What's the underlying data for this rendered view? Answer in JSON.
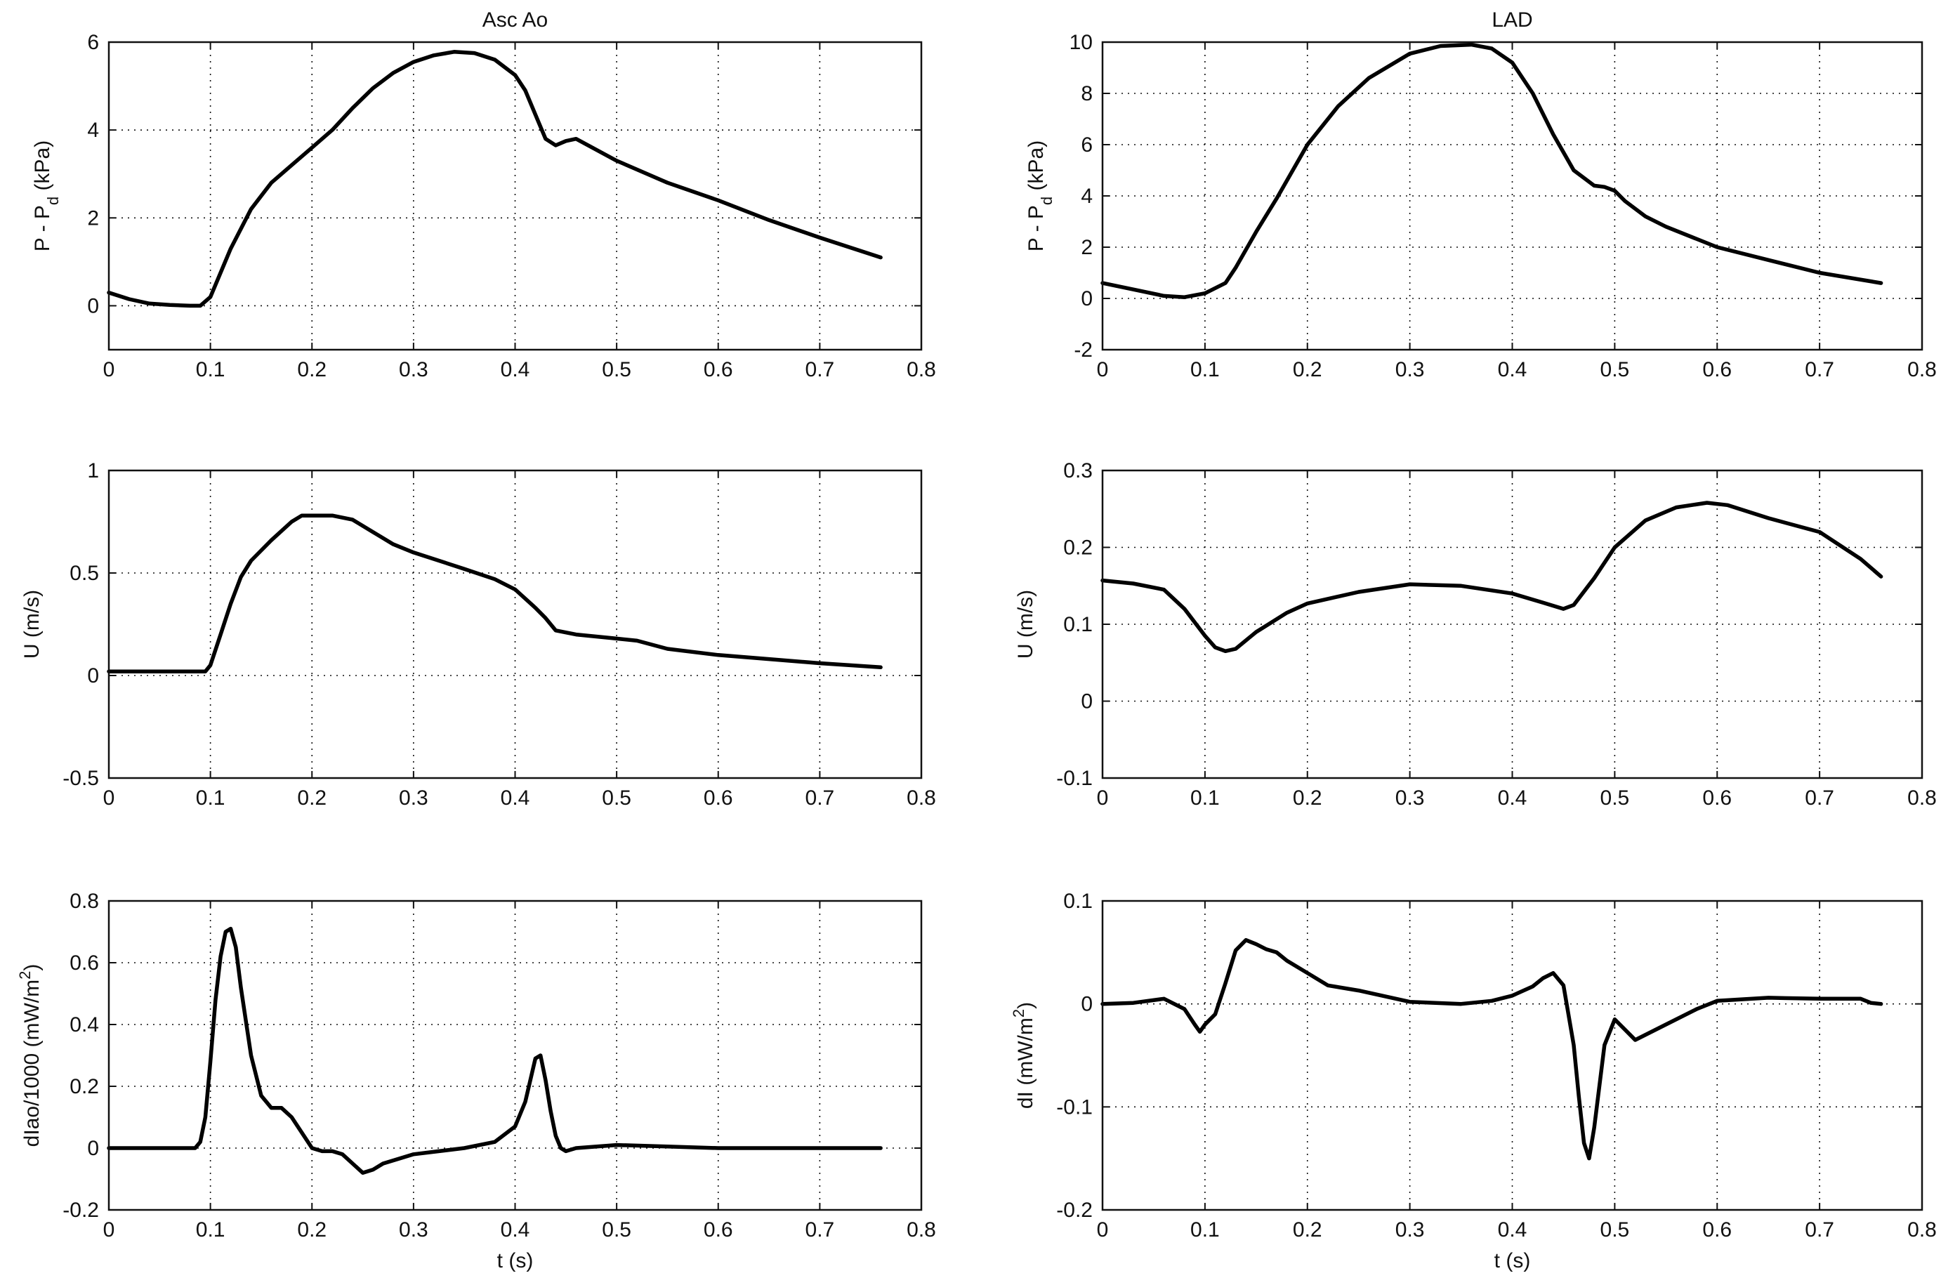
{
  "figure": {
    "col_titles": [
      "Asc Ao",
      "LAD"
    ],
    "xlabel": "t  (s)"
  },
  "chart_data": [
    {
      "id": "ascao-pressure",
      "type": "line",
      "title": "Asc Ao",
      "xlabel": "",
      "ylabel": "P - P_d  (kPa)",
      "xlim": [
        0,
        0.8
      ],
      "ylim": [
        -1,
        6
      ],
      "grid": true,
      "xticks": [
        "0",
        "0.1",
        "0.2",
        "0.3",
        "0.4",
        "0.5",
        "0.6",
        "0.7",
        "0.8"
      ],
      "yticks": [
        "0",
        "2",
        "4",
        "6"
      ],
      "x": [
        0,
        0.02,
        0.04,
        0.06,
        0.08,
        0.09,
        0.1,
        0.12,
        0.14,
        0.16,
        0.18,
        0.2,
        0.22,
        0.24,
        0.26,
        0.28,
        0.3,
        0.32,
        0.34,
        0.36,
        0.38,
        0.4,
        0.41,
        0.42,
        0.43,
        0.44,
        0.45,
        0.46,
        0.48,
        0.5,
        0.55,
        0.6,
        0.65,
        0.7,
        0.76
      ],
      "y": [
        0.3,
        0.15,
        0.05,
        0.02,
        0.0,
        0.0,
        0.2,
        1.3,
        2.2,
        2.8,
        3.2,
        3.6,
        4.0,
        4.5,
        4.95,
        5.3,
        5.55,
        5.7,
        5.78,
        5.75,
        5.6,
        5.25,
        4.9,
        4.35,
        3.8,
        3.65,
        3.75,
        3.8,
        3.55,
        3.3,
        2.8,
        2.4,
        1.95,
        1.55,
        1.1
      ]
    },
    {
      "id": "ascao-velocity",
      "type": "line",
      "xlabel": "",
      "ylabel": "U  (m/s)",
      "xlim": [
        0,
        0.8
      ],
      "ylim": [
        -0.5,
        1
      ],
      "grid": true,
      "xticks": [
        "0",
        "0.1",
        "0.2",
        "0.3",
        "0.4",
        "0.5",
        "0.6",
        "0.7",
        "0.8"
      ],
      "yticks": [
        "-0.5",
        "0",
        "0.5",
        "1"
      ],
      "x": [
        0,
        0.05,
        0.095,
        0.1,
        0.11,
        0.12,
        0.13,
        0.14,
        0.16,
        0.18,
        0.19,
        0.2,
        0.22,
        0.24,
        0.26,
        0.28,
        0.3,
        0.35,
        0.38,
        0.4,
        0.42,
        0.43,
        0.44,
        0.46,
        0.5,
        0.52,
        0.55,
        0.6,
        0.65,
        0.7,
        0.76
      ],
      "y": [
        0.02,
        0.02,
        0.02,
        0.05,
        0.2,
        0.35,
        0.48,
        0.56,
        0.66,
        0.75,
        0.78,
        0.78,
        0.78,
        0.76,
        0.7,
        0.64,
        0.6,
        0.52,
        0.47,
        0.42,
        0.33,
        0.28,
        0.22,
        0.2,
        0.18,
        0.17,
        0.13,
        0.1,
        0.08,
        0.06,
        0.04
      ]
    },
    {
      "id": "ascao-intensity",
      "type": "line",
      "xlabel": "t  (s)",
      "ylabel": "dIao/1000  (mW/m^2)",
      "xlim": [
        0,
        0.8
      ],
      "ylim": [
        -0.2,
        0.8
      ],
      "grid": true,
      "xticks": [
        "0",
        "0.1",
        "0.2",
        "0.3",
        "0.4",
        "0.5",
        "0.6",
        "0.7",
        "0.8"
      ],
      "yticks": [
        "-0.2",
        "0",
        "0.2",
        "0.4",
        "0.6",
        "0.8"
      ],
      "x": [
        0,
        0.05,
        0.085,
        0.09,
        0.095,
        0.1,
        0.105,
        0.11,
        0.115,
        0.12,
        0.125,
        0.13,
        0.14,
        0.15,
        0.16,
        0.17,
        0.18,
        0.19,
        0.2,
        0.21,
        0.22,
        0.23,
        0.24,
        0.25,
        0.26,
        0.27,
        0.3,
        0.35,
        0.38,
        0.4,
        0.41,
        0.415,
        0.42,
        0.425,
        0.43,
        0.435,
        0.44,
        0.445,
        0.45,
        0.46,
        0.5,
        0.55,
        0.6,
        0.65,
        0.7,
        0.76
      ],
      "y": [
        0,
        0,
        0,
        0.02,
        0.1,
        0.28,
        0.48,
        0.62,
        0.7,
        0.71,
        0.65,
        0.52,
        0.3,
        0.17,
        0.13,
        0.13,
        0.1,
        0.05,
        0.0,
        -0.01,
        -0.01,
        -0.02,
        -0.05,
        -0.08,
        -0.07,
        -0.05,
        -0.02,
        0.0,
        0.02,
        0.07,
        0.15,
        0.22,
        0.29,
        0.3,
        0.22,
        0.12,
        0.04,
        0.0,
        -0.01,
        0.0,
        0.01,
        0.005,
        0,
        0,
        0,
        0
      ]
    },
    {
      "id": "lad-pressure",
      "type": "line",
      "title": "LAD",
      "xlabel": "",
      "ylabel": "P - P_d  (kPa)",
      "xlim": [
        0,
        0.8
      ],
      "ylim": [
        -2,
        10
      ],
      "grid": true,
      "xticks": [
        "0",
        "0.1",
        "0.2",
        "0.3",
        "0.4",
        "0.5",
        "0.6",
        "0.7",
        "0.8"
      ],
      "yticks": [
        "-2",
        "0",
        "2",
        "4",
        "6",
        "8",
        "10"
      ],
      "x": [
        0,
        0.03,
        0.06,
        0.08,
        0.1,
        0.12,
        0.13,
        0.15,
        0.17,
        0.2,
        0.23,
        0.26,
        0.3,
        0.33,
        0.36,
        0.38,
        0.4,
        0.42,
        0.44,
        0.46,
        0.48,
        0.49,
        0.5,
        0.51,
        0.53,
        0.55,
        0.6,
        0.65,
        0.7,
        0.76
      ],
      "y": [
        0.6,
        0.35,
        0.1,
        0.05,
        0.2,
        0.6,
        1.2,
        2.6,
        3.9,
        6.0,
        7.5,
        8.6,
        9.55,
        9.85,
        9.9,
        9.75,
        9.2,
        8.0,
        6.4,
        5.0,
        4.4,
        4.35,
        4.2,
        3.8,
        3.2,
        2.8,
        2.0,
        1.5,
        1.0,
        0.6
      ]
    },
    {
      "id": "lad-velocity",
      "type": "line",
      "xlabel": "",
      "ylabel": "U  (m/s)",
      "xlim": [
        0,
        0.8
      ],
      "ylim": [
        -0.1,
        0.3
      ],
      "grid": true,
      "xticks": [
        "0",
        "0.1",
        "0.2",
        "0.3",
        "0.4",
        "0.5",
        "0.6",
        "0.7",
        "0.8"
      ],
      "yticks": [
        "-0.1",
        "0",
        "0.1",
        "0.2",
        "0.3"
      ],
      "x": [
        0,
        0.03,
        0.06,
        0.08,
        0.1,
        0.11,
        0.12,
        0.13,
        0.15,
        0.18,
        0.2,
        0.25,
        0.3,
        0.35,
        0.4,
        0.43,
        0.45,
        0.46,
        0.48,
        0.5,
        0.53,
        0.56,
        0.59,
        0.61,
        0.65,
        0.7,
        0.74,
        0.76
      ],
      "y": [
        0.157,
        0.153,
        0.145,
        0.12,
        0.085,
        0.07,
        0.065,
        0.068,
        0.09,
        0.115,
        0.127,
        0.142,
        0.152,
        0.15,
        0.14,
        0.128,
        0.12,
        0.125,
        0.16,
        0.2,
        0.235,
        0.252,
        0.258,
        0.255,
        0.238,
        0.22,
        0.185,
        0.162
      ]
    },
    {
      "id": "lad-intensity",
      "type": "line",
      "xlabel": "t  (s)",
      "ylabel": "dI  (mW/m^2)",
      "xlim": [
        0,
        0.8
      ],
      "ylim": [
        -0.2,
        0.1
      ],
      "grid": true,
      "xticks": [
        "0",
        "0.1",
        "0.2",
        "0.3",
        "0.4",
        "0.5",
        "0.6",
        "0.7",
        "0.8"
      ],
      "yticks": [
        "-0.2",
        "-0.1",
        "0",
        "0.1"
      ],
      "x": [
        0,
        0.03,
        0.06,
        0.08,
        0.09,
        0.095,
        0.1,
        0.11,
        0.12,
        0.13,
        0.14,
        0.15,
        0.16,
        0.17,
        0.18,
        0.2,
        0.22,
        0.25,
        0.3,
        0.35,
        0.38,
        0.4,
        0.42,
        0.43,
        0.44,
        0.45,
        0.46,
        0.465,
        0.47,
        0.475,
        0.48,
        0.49,
        0.5,
        0.51,
        0.52,
        0.55,
        0.58,
        0.6,
        0.65,
        0.7,
        0.74,
        0.75,
        0.76
      ],
      "y": [
        0,
        0.001,
        0.005,
        -0.005,
        -0.02,
        -0.027,
        -0.02,
        -0.01,
        0.02,
        0.052,
        0.062,
        0.058,
        0.053,
        0.05,
        0.042,
        0.03,
        0.018,
        0.013,
        0.002,
        0.0,
        0.003,
        0.008,
        0.017,
        0.025,
        0.03,
        0.018,
        -0.04,
        -0.09,
        -0.135,
        -0.15,
        -0.12,
        -0.04,
        -0.015,
        -0.025,
        -0.035,
        -0.02,
        -0.005,
        0.003,
        0.006,
        0.005,
        0.005,
        0.001,
        0.0
      ]
    }
  ]
}
